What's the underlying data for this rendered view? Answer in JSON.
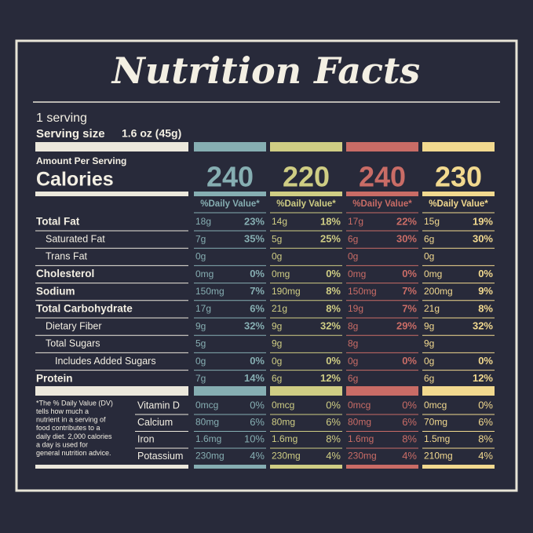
{
  "title": "Nutrition Facts",
  "servings": "1 serving",
  "serving_size": "Serving size",
  "serving_amount": "1.6 oz (45g)",
  "amount_per_serving": "Amount Per Serving",
  "calories_label": "Calories",
  "nutrient_rows": [
    {
      "label": "Total Fat",
      "bold": true,
      "indent": 0
    },
    {
      "label": "Saturated Fat",
      "bold": false,
      "indent": 1
    },
    {
      "label": "Trans Fat",
      "bold": false,
      "indent": 1
    },
    {
      "label": "Cholesterol",
      "bold": true,
      "indent": 0
    },
    {
      "label": "Sodium",
      "bold": true,
      "indent": 0
    },
    {
      "label": "Total Carbohydrate",
      "bold": true,
      "indent": 0
    },
    {
      "label": "Dietary Fiber",
      "bold": false,
      "indent": 1
    },
    {
      "label": "Total Sugars",
      "bold": false,
      "indent": 1
    },
    {
      "label": "Includes Added Sugars",
      "bold": false,
      "indent": 2
    },
    {
      "label": "Protein",
      "bold": true,
      "indent": 0
    }
  ],
  "footnote": [
    "*The % Daily Value (DV)",
    "tells how much a",
    "nutrient in a serving of",
    "food contributes to a",
    "daily diet. 2,000 calories",
    "a day is used for",
    "general nutrition advice."
  ],
  "vitamin_rows": [
    "Vitamin D",
    "Calcium",
    "Iron",
    "Potassium"
  ],
  "columns": [
    {
      "color": "#86aeb2",
      "calories": "240",
      "dv_header": "%Daily Value*",
      "nutrients": [
        [
          "18g",
          "23%"
        ],
        [
          "7g",
          "35%"
        ],
        [
          "0g"
        ],
        [
          "0mg",
          "0%"
        ],
        [
          "150mg",
          "7%"
        ],
        [
          "17g",
          "6%"
        ],
        [
          "9g",
          "32%"
        ],
        [
          "5g"
        ],
        [
          "0g",
          "0%"
        ],
        [
          "7g",
          "14%"
        ]
      ],
      "vitamins": [
        [
          "0mcg",
          "0%"
        ],
        [
          "80mg",
          "6%"
        ],
        [
          "1.6mg",
          "10%"
        ],
        [
          "230mg",
          "4%"
        ]
      ]
    },
    {
      "color": "#cfcd84",
      "calories": "220",
      "dv_header": "%Daily Value*",
      "nutrients": [
        [
          "14g",
          "18%"
        ],
        [
          "5g",
          "25%"
        ],
        [
          "0g"
        ],
        [
          "0mg",
          "0%"
        ],
        [
          "190mg",
          "8%"
        ],
        [
          "21g",
          "8%"
        ],
        [
          "9g",
          "32%"
        ],
        [
          "9g"
        ],
        [
          "0g",
          "0%"
        ],
        [
          "6g",
          "12%"
        ]
      ],
      "vitamins": [
        [
          "0mcg",
          "0%"
        ],
        [
          "80mg",
          "6%"
        ],
        [
          "1.6mg",
          "8%"
        ],
        [
          "230mg",
          "4%"
        ]
      ]
    },
    {
      "color": "#c96c66",
      "calories": "240",
      "dv_header": "%Daily Value*",
      "nutrients": [
        [
          "17g",
          "22%"
        ],
        [
          "6g",
          "30%"
        ],
        [
          "0g"
        ],
        [
          "0mg",
          "0%"
        ],
        [
          "150mg",
          "7%"
        ],
        [
          "19g",
          "7%"
        ],
        [
          "8g",
          "29%"
        ],
        [
          "8g"
        ],
        [
          "0g",
          "0%"
        ],
        [
          "6g"
        ]
      ],
      "vitamins": [
        [
          "0mcg",
          "0%"
        ],
        [
          "80mg",
          "6%"
        ],
        [
          "1.6mg",
          "8%"
        ],
        [
          "230mg",
          "4%"
        ]
      ]
    },
    {
      "color": "#f2d98f",
      "calories": "230",
      "dv_header": "%Daily Value*",
      "nutrients": [
        [
          "15g",
          "19%"
        ],
        [
          "6g",
          "30%"
        ],
        [
          "0g"
        ],
        [
          "0mg",
          "0%"
        ],
        [
          "200mg",
          "9%"
        ],
        [
          "21g",
          "8%"
        ],
        [
          "9g",
          "32%"
        ],
        [
          "9g"
        ],
        [
          "0g",
          "0%"
        ],
        [
          "6g",
          "12%"
        ]
      ],
      "vitamins": [
        [
          "0mcg",
          "0%"
        ],
        [
          "70mg",
          "6%"
        ],
        [
          "1.5mg",
          "8%"
        ],
        [
          "210mg",
          "4%"
        ]
      ]
    }
  ]
}
